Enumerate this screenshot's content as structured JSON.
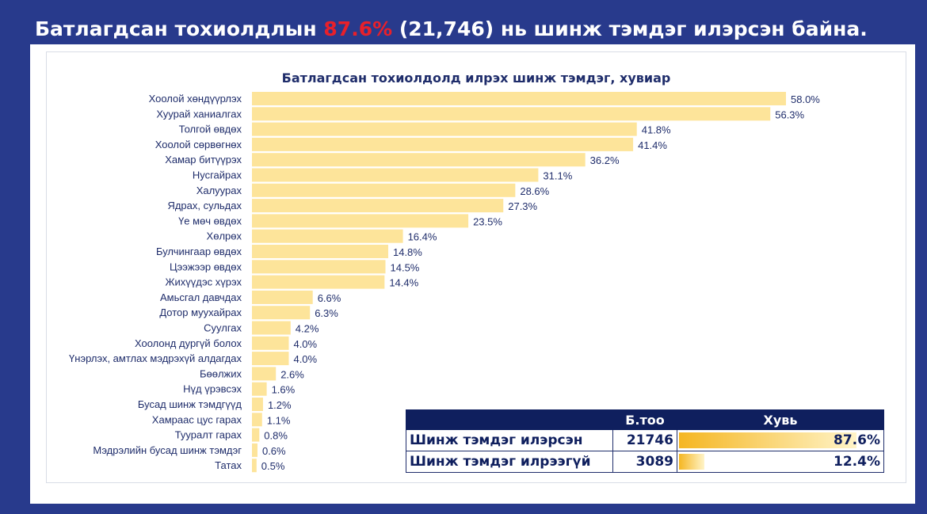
{
  "headline": {
    "before": "Батлагдсан тохиолдлын ",
    "highlight": "87.6%",
    "after": " (21,746) нь шинж тэмдэг илэрсэн байна."
  },
  "colors": {
    "background": "#283a8c",
    "highlight": "#e8202a",
    "bar": "#fde49a",
    "text": "#1f2d6b",
    "table_header": "#0f1f5e"
  },
  "chart_data": {
    "type": "bar",
    "orientation": "horizontal",
    "title": "Батлагдсан тохиолдолд илрэх шинж тэмдэг, хувиар",
    "categories": [
      "Хоолой хөндүүрлэх",
      "Хуурай ханиалгах",
      "Толгой өвдөх",
      "Хоолой сөрвөгнөх",
      "Хамар битүүрэх",
      "Нусгайрах",
      "Халуурах",
      "Ядрах, сульдах",
      "Үе мөч өвдөх",
      "Хөлрөх",
      "Булчингаар өвдөх",
      "Цээжээр өвдөх",
      "Жихүүдэс хүрэх",
      "Амьсгал давчдах",
      "Дотор муухайрах",
      "Суулгах",
      "Хоолонд дургүй болох",
      "Үнэрлэх, амтлах мэдрэхүй алдагдах",
      "Бөөлжих",
      "Нүд үрэвсэх",
      "Бусад шинж тэмдгүүд",
      "Хамраас цус гарах",
      "Тууралт гарах",
      "Мэдрэлийн бусад шинж тэмдэг",
      "Татах"
    ],
    "values": [
      58.0,
      56.3,
      41.8,
      41.4,
      36.2,
      31.1,
      28.6,
      27.3,
      23.5,
      16.4,
      14.8,
      14.5,
      14.4,
      6.6,
      6.3,
      4.2,
      4.0,
      4.0,
      2.6,
      1.6,
      1.2,
      1.1,
      0.8,
      0.6,
      0.5
    ],
    "value_labels": [
      "58.0%",
      "56.3%",
      "41.8%",
      "41.4%",
      "36.2%",
      "31.1%",
      "28.6%",
      "27.3%",
      "23.5%",
      "16.4%",
      "14.8%",
      "14.5%",
      "14.4%",
      "6.6%",
      "6.3%",
      "4.2%",
      "4.0%",
      "4.0%",
      "2.6%",
      "1.6%",
      "1.2%",
      "1.1%",
      "0.8%",
      "0.6%",
      "0.5%"
    ],
    "xlim": [
      0,
      58
    ],
    "xlabel": "",
    "ylabel": "",
    "grid": false
  },
  "summary_table": {
    "headers": [
      "",
      "Б.тоо",
      "Хувь"
    ],
    "rows": [
      {
        "label": "Шинж тэмдэг илэрсэн",
        "count": "21746",
        "percent_label": "87.6%",
        "percent": 87.6
      },
      {
        "label": "Шинж тэмдэг илрээгүй",
        "count": "3089",
        "percent_label": "12.4%",
        "percent": 12.4
      }
    ]
  }
}
